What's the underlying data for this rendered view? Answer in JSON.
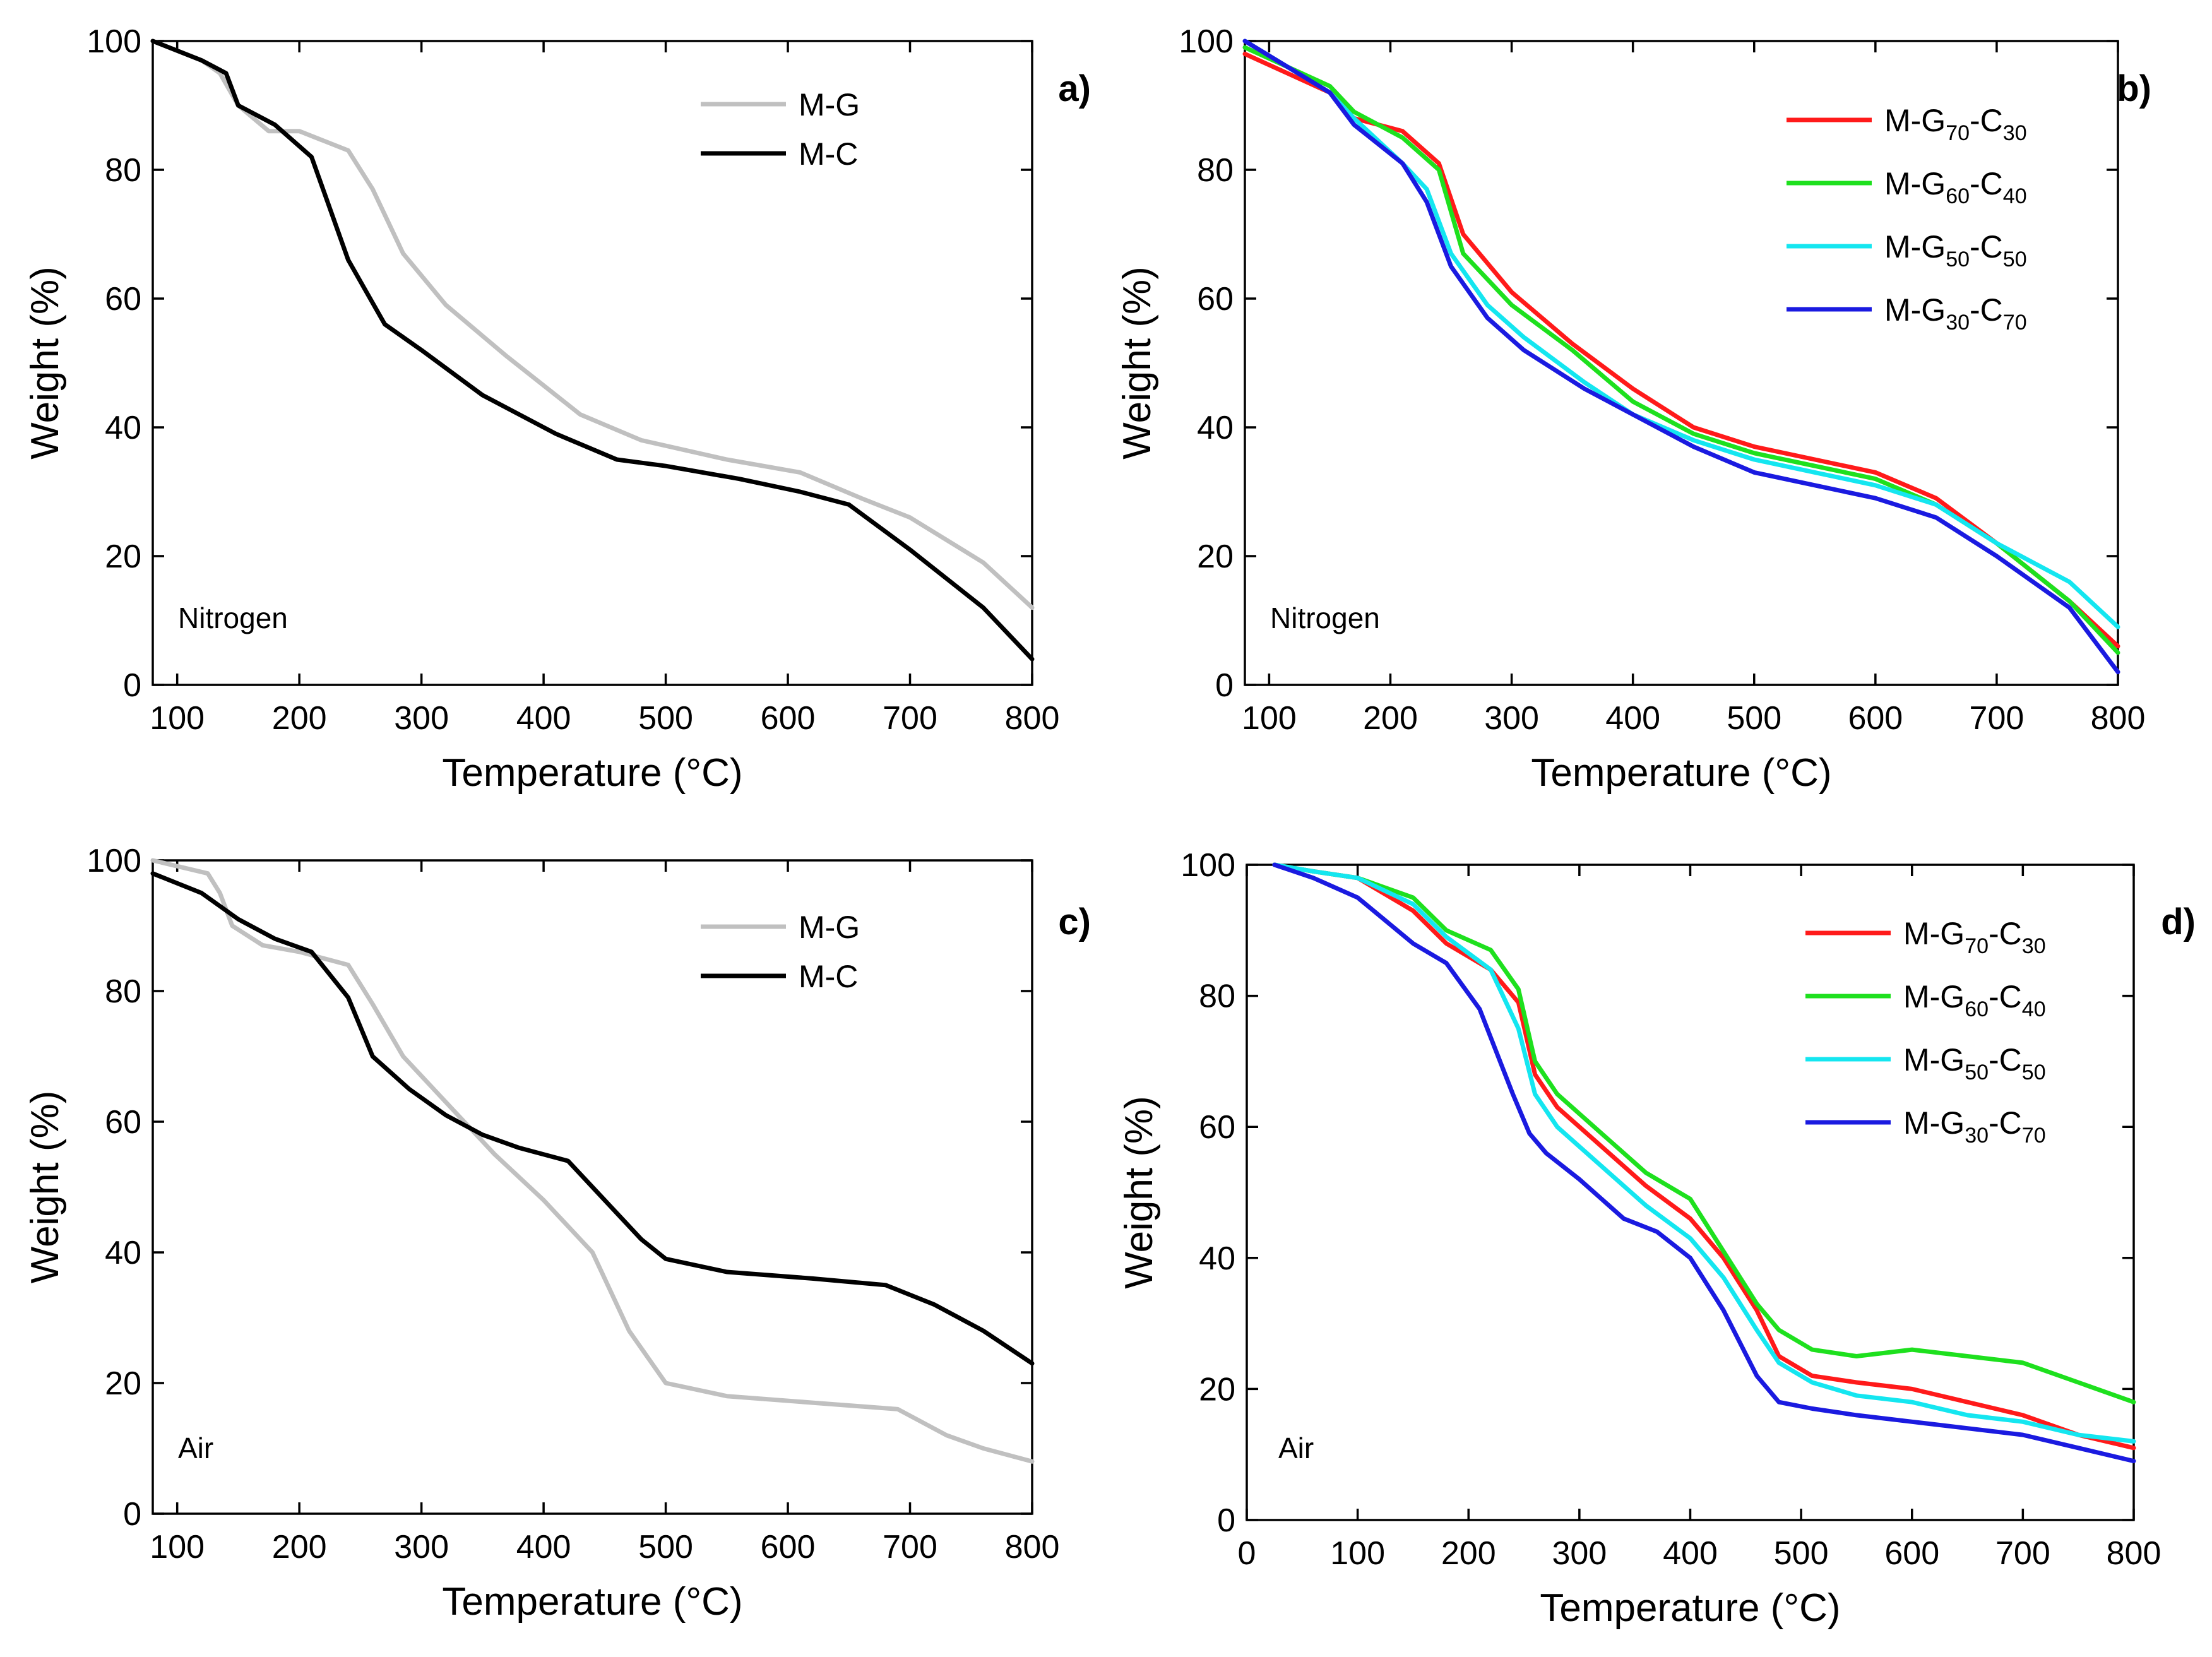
{
  "chart_data": [
    {
      "panel": "a)",
      "type": "line",
      "title": "",
      "xlabel": "Temperature (°C)",
      "ylabel": "Weight (%)",
      "xlim": [
        80,
        800
      ],
      "ylim": [
        0,
        100
      ],
      "xticks": [
        100,
        200,
        300,
        400,
        500,
        600,
        700,
        800
      ],
      "yticks": [
        0,
        20,
        40,
        60,
        80,
        100
      ],
      "annotation": "Nitrogen",
      "legend_position": "top-right",
      "series": [
        {
          "name": "M-G",
          "color": "#c0c0c0",
          "x": [
            80,
            120,
            135,
            150,
            175,
            200,
            240,
            260,
            285,
            320,
            370,
            430,
            480,
            550,
            610,
            660,
            700,
            760,
            800
          ],
          "y": [
            100,
            97,
            95,
            90,
            86,
            86,
            83,
            77,
            67,
            59,
            51,
            42,
            38,
            35,
            33,
            29,
            26,
            19,
            12
          ]
        },
        {
          "name": "M-C",
          "color": "#000000",
          "x": [
            80,
            120,
            140,
            150,
            180,
            210,
            240,
            270,
            300,
            350,
            410,
            460,
            500,
            560,
            610,
            650,
            700,
            760,
            800
          ],
          "y": [
            100,
            97,
            95,
            90,
            87,
            82,
            66,
            56,
            52,
            45,
            39,
            35,
            34,
            32,
            30,
            28,
            21,
            12,
            4
          ]
        }
      ]
    },
    {
      "panel": "b)",
      "type": "line",
      "title": "",
      "xlabel": "Temperature (°C)",
      "ylabel": "Weight (%)",
      "xlim": [
        80,
        800
      ],
      "ylim": [
        0,
        100
      ],
      "xticks": [
        100,
        200,
        300,
        400,
        500,
        600,
        700,
        800
      ],
      "yticks": [
        0,
        20,
        40,
        60,
        80,
        100
      ],
      "annotation": "Nitrogen",
      "legend_position": "top-right",
      "series": [
        {
          "name": "M-G70-C30",
          "base": "M-G",
          "sub1": "70",
          "mid": "-C",
          "sub2": "30",
          "color": "#ff1a1a",
          "x": [
            80,
            150,
            170,
            210,
            240,
            260,
            300,
            350,
            400,
            450,
            500,
            550,
            600,
            650,
            700,
            760,
            800
          ],
          "y": [
            98,
            92,
            88,
            86,
            81,
            70,
            61,
            53,
            46,
            40,
            37,
            35,
            33,
            29,
            22,
            13,
            6
          ]
        },
        {
          "name": "M-G60-C40",
          "base": "M-G",
          "sub1": "60",
          "mid": "-C",
          "sub2": "40",
          "color": "#1ee01e",
          "x": [
            80,
            150,
            170,
            210,
            240,
            260,
            300,
            350,
            400,
            450,
            500,
            550,
            600,
            650,
            700,
            760,
            800
          ],
          "y": [
            99,
            93,
            89,
            85,
            80,
            67,
            59,
            52,
            44,
            39,
            36,
            34,
            32,
            28,
            22,
            13,
            5
          ]
        },
        {
          "name": "M-G50-C50",
          "base": "M-G",
          "sub1": "50",
          "mid": "-C",
          "sub2": "50",
          "color": "#14e6f0",
          "x": [
            80,
            150,
            170,
            210,
            230,
            250,
            280,
            310,
            360,
            400,
            450,
            500,
            550,
            600,
            650,
            700,
            760,
            800
          ],
          "y": [
            100,
            92,
            88,
            81,
            77,
            67,
            59,
            54,
            47,
            42,
            38,
            35,
            33,
            31,
            28,
            22,
            16,
            9
          ]
        },
        {
          "name": "M-G30-C70",
          "base": "M-G",
          "sub1": "30",
          "mid": "-C",
          "sub2": "70",
          "color": "#1a1ae0",
          "x": [
            80,
            150,
            170,
            210,
            230,
            250,
            280,
            310,
            360,
            400,
            450,
            500,
            550,
            600,
            650,
            700,
            760,
            800
          ],
          "y": [
            100,
            92,
            87,
            81,
            75,
            65,
            57,
            52,
            46,
            42,
            37,
            33,
            31,
            29,
            26,
            20,
            12,
            2
          ]
        }
      ]
    },
    {
      "panel": "c)",
      "type": "line",
      "title": "",
      "xlabel": "Temperature (°C)",
      "ylabel": "Weight (%)",
      "xlim": [
        80,
        800
      ],
      "ylim": [
        0,
        100
      ],
      "xticks": [
        100,
        200,
        300,
        400,
        500,
        600,
        700,
        800
      ],
      "yticks": [
        0,
        20,
        40,
        60,
        80,
        100
      ],
      "annotation": "Air",
      "legend_position": "top-right",
      "series": [
        {
          "name": "M-G",
          "color": "#c0c0c0",
          "x": [
            80,
            125,
            135,
            145,
            170,
            200,
            240,
            260,
            285,
            320,
            360,
            400,
            440,
            470,
            500,
            550,
            620,
            690,
            730,
            760,
            800
          ],
          "y": [
            100,
            98,
            95,
            90,
            87,
            86,
            84,
            78,
            70,
            63,
            55,
            48,
            40,
            28,
            20,
            18,
            17,
            16,
            12,
            10,
            8
          ]
        },
        {
          "name": "M-C",
          "color": "#000000",
          "x": [
            80,
            120,
            150,
            180,
            210,
            240,
            260,
            290,
            320,
            350,
            380,
            420,
            450,
            480,
            500,
            550,
            620,
            680,
            720,
            760,
            800
          ],
          "y": [
            98,
            95,
            91,
            88,
            86,
            79,
            70,
            65,
            61,
            58,
            56,
            54,
            48,
            42,
            39,
            37,
            36,
            35,
            32,
            28,
            23
          ]
        }
      ]
    },
    {
      "panel": "d)",
      "type": "line",
      "title": "",
      "xlabel": "Temperature (°C)",
      "ylabel": "Weight (%)",
      "xlim": [
        0,
        800
      ],
      "ylim": [
        0,
        100
      ],
      "xticks": [
        0,
        100,
        200,
        300,
        400,
        500,
        600,
        700,
        800
      ],
      "yticks": [
        0,
        20,
        40,
        60,
        80,
        100
      ],
      "annotation": "Air",
      "legend_position": "top-right",
      "series": [
        {
          "name": "M-G70-C30",
          "base": "M-G",
          "sub1": "70",
          "mid": "-C",
          "sub2": "30",
          "color": "#ff1a1a",
          "x": [
            25,
            60,
            100,
            150,
            180,
            220,
            245,
            260,
            280,
            320,
            360,
            400,
            430,
            460,
            480,
            510,
            550,
            600,
            650,
            700,
            750,
            800
          ],
          "y": [
            100,
            99,
            98,
            93,
            88,
            84,
            79,
            68,
            63,
            57,
            51,
            46,
            40,
            32,
            25,
            22,
            21,
            20,
            18,
            16,
            13,
            11
          ]
        },
        {
          "name": "M-G60-C40",
          "base": "M-G",
          "sub1": "60",
          "mid": "-C",
          "sub2": "40",
          "color": "#1ee01e",
          "x": [
            25,
            60,
            100,
            150,
            180,
            220,
            245,
            260,
            280,
            320,
            360,
            400,
            430,
            460,
            480,
            510,
            550,
            600,
            650,
            700,
            750,
            800
          ],
          "y": [
            100,
            99,
            98,
            95,
            90,
            87,
            81,
            70,
            65,
            59,
            53,
            49,
            41,
            33,
            29,
            26,
            25,
            26,
            25,
            24,
            21,
            18
          ]
        },
        {
          "name": "M-G50-C50",
          "base": "M-G",
          "sub1": "50",
          "mid": "-C",
          "sub2": "50",
          "color": "#14e6f0",
          "x": [
            25,
            60,
            100,
            150,
            180,
            220,
            245,
            260,
            280,
            320,
            360,
            400,
            430,
            460,
            480,
            510,
            550,
            600,
            650,
            700,
            750,
            800
          ],
          "y": [
            100,
            99,
            98,
            94,
            89,
            84,
            75,
            65,
            60,
            54,
            48,
            43,
            37,
            29,
            24,
            21,
            19,
            18,
            16,
            15,
            13,
            12
          ]
        },
        {
          "name": "M-G30-C70",
          "base": "M-G",
          "sub1": "30",
          "mid": "-C",
          "sub2": "70",
          "color": "#1a1ae0",
          "x": [
            25,
            60,
            100,
            150,
            180,
            210,
            240,
            255,
            270,
            300,
            340,
            370,
            400,
            430,
            460,
            480,
            510,
            550,
            600,
            650,
            700,
            750,
            800
          ],
          "y": [
            100,
            98,
            95,
            88,
            85,
            78,
            65,
            59,
            56,
            52,
            46,
            44,
            40,
            32,
            22,
            18,
            17,
            16,
            15,
            14,
            13,
            11,
            9
          ]
        }
      ]
    }
  ]
}
